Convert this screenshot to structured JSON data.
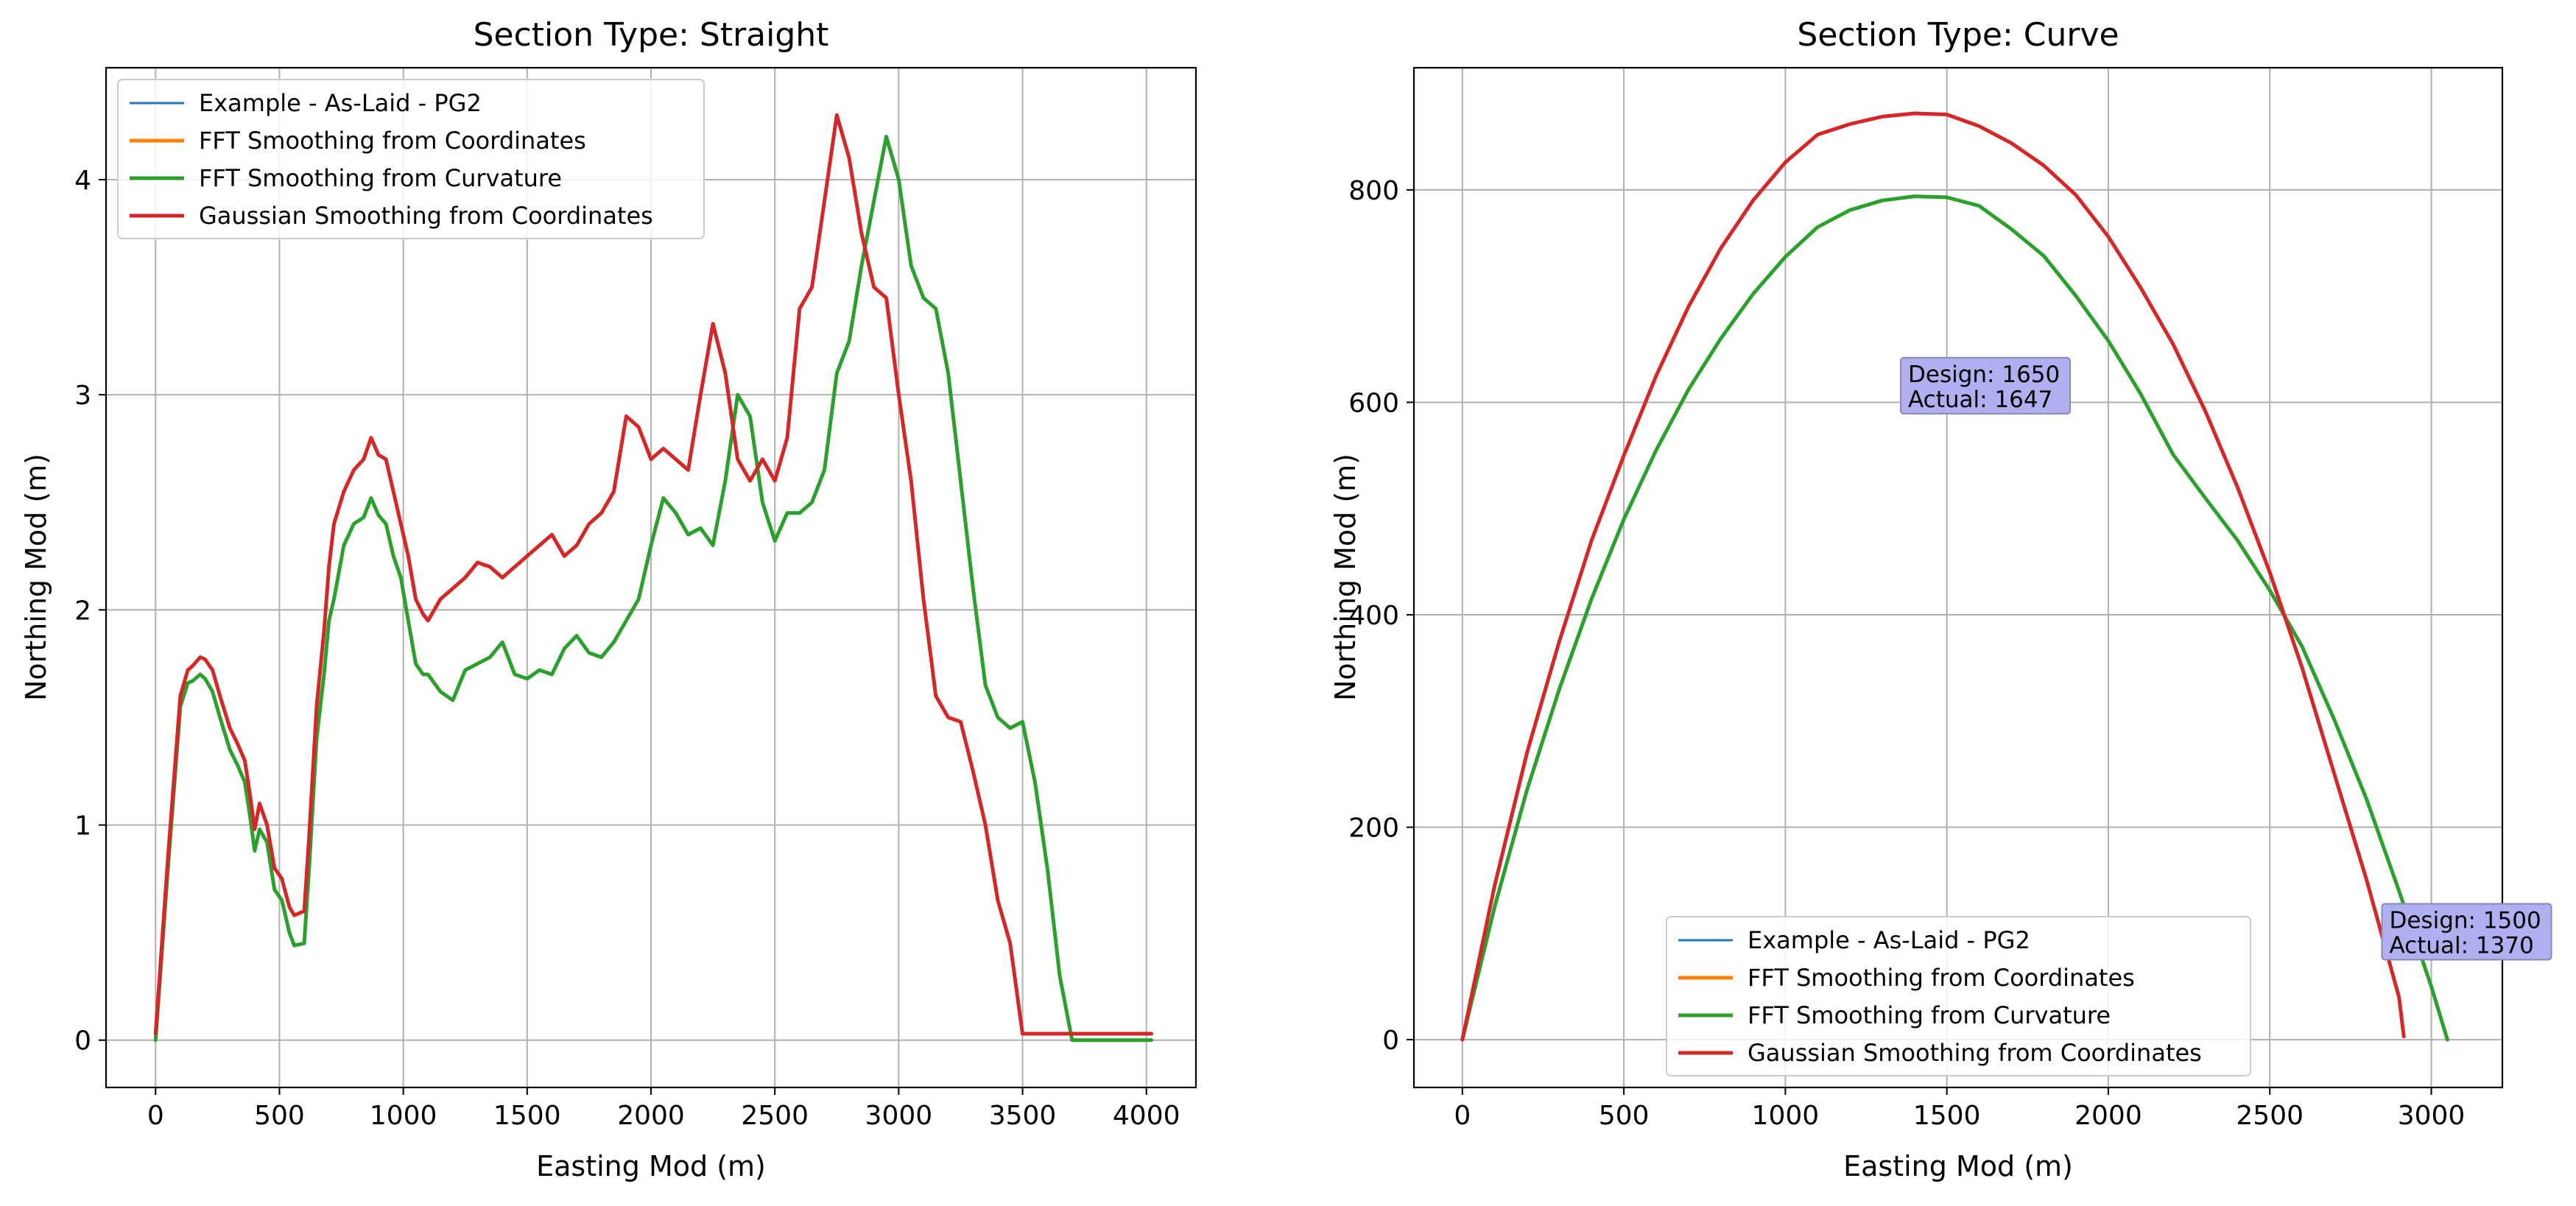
{
  "chart_data": [
    {
      "type": "line",
      "title": "Section Type: Straight",
      "xlabel": "Easting Mod (m)",
      "ylabel": "Northing Mod (m)",
      "xlim": [
        -200,
        4200
      ],
      "ylim": [
        -0.22,
        4.52
      ],
      "xticks": [
        0,
        500,
        1000,
        1500,
        2000,
        2500,
        3000,
        3500,
        4000
      ],
      "xtick_labels": [
        "0",
        "500",
        "1000",
        "1500",
        "2000",
        "2500",
        "3000",
        "3500",
        "4000"
      ],
      "yticks": [
        0,
        1,
        2,
        3,
        4
      ],
      "ytick_labels": [
        "0",
        "1",
        "2",
        "3",
        "4"
      ],
      "grid": true,
      "legend_position": "upper-left",
      "legend": [
        {
          "label": "Example - As-Laid - PG2",
          "color": "#1f77b4"
        },
        {
          "label": "FFT Smoothing from Coordinates",
          "color": "#ff7f0e"
        },
        {
          "label": "FFT Smoothing from Curvature",
          "color": "#2ca02c"
        },
        {
          "label": "Gaussian Smoothing from Coordinates",
          "color": "#d62728"
        }
      ],
      "series": [
        {
          "color": "#2ca02c",
          "x": [
            0,
            50,
            100,
            130,
            150,
            180,
            200,
            230,
            260,
            300,
            330,
            360,
            380,
            400,
            420,
            450,
            480,
            510,
            540,
            560,
            600,
            620,
            650,
            680,
            700,
            720,
            760,
            800,
            840,
            870,
            900,
            930,
            960,
            990,
            1020,
            1050,
            1080,
            1100,
            1150,
            1200,
            1250,
            1300,
            1350,
            1400,
            1450,
            1500,
            1550,
            1600,
            1650,
            1700,
            1750,
            1800,
            1850,
            1900,
            1950,
            2000,
            2050,
            2100,
            2150,
            2200,
            2250,
            2300,
            2350,
            2400,
            2450,
            2500,
            2550,
            2600,
            2650,
            2700,
            2750,
            2800,
            2850,
            2900,
            2950,
            3000,
            3050,
            3100,
            3150,
            3200,
            3250,
            3300,
            3350,
            3400,
            3450,
            3500,
            3550,
            3600,
            3650,
            3700,
            3750,
            3800,
            3850,
            3900,
            3950,
            4000,
            4020
          ],
          "y": [
            0.0,
            0.8,
            1.55,
            1.66,
            1.67,
            1.7,
            1.68,
            1.62,
            1.5,
            1.35,
            1.28,
            1.2,
            1.05,
            0.88,
            0.98,
            0.92,
            0.7,
            0.65,
            0.5,
            0.44,
            0.45,
            0.8,
            1.4,
            1.7,
            1.95,
            2.05,
            2.3,
            2.4,
            2.43,
            2.52,
            2.44,
            2.4,
            2.25,
            2.15,
            1.95,
            1.75,
            1.7,
            1.7,
            1.62,
            1.58,
            1.72,
            1.75,
            1.78,
            1.85,
            1.7,
            1.68,
            1.72,
            1.7,
            1.82,
            1.88,
            1.8,
            1.78,
            1.85,
            1.95,
            2.05,
            2.3,
            2.52,
            2.45,
            2.35,
            2.38,
            2.3,
            2.6,
            3.0,
            2.9,
            2.5,
            2.32,
            2.45,
            2.45,
            2.5,
            2.65,
            3.1,
            3.25,
            3.6,
            3.9,
            4.2,
            4.0,
            3.6,
            3.45,
            3.4,
            3.1,
            2.6,
            2.1,
            1.65,
            1.5,
            1.45,
            1.48,
            1.2,
            0.8,
            0.3,
            0.0,
            0.0,
            0.0,
            0.0,
            0.0,
            0.0,
            0.0,
            0.0
          ]
        },
        {
          "color": "#d62728",
          "x": [
            0,
            50,
            100,
            130,
            150,
            180,
            200,
            230,
            260,
            300,
            330,
            360,
            380,
            400,
            420,
            450,
            480,
            510,
            540,
            560,
            600,
            620,
            650,
            680,
            700,
            720,
            760,
            800,
            840,
            870,
            900,
            930,
            960,
            990,
            1020,
            1050,
            1080,
            1100,
            1150,
            1200,
            1250,
            1300,
            1350,
            1400,
            1450,
            1500,
            1550,
            1600,
            1650,
            1700,
            1750,
            1800,
            1850,
            1900,
            1950,
            2000,
            2050,
            2100,
            2150,
            2200,
            2250,
            2300,
            2350,
            2400,
            2450,
            2500,
            2550,
            2600,
            2650,
            2700,
            2750,
            2800,
            2850,
            2900,
            2950,
            3000,
            3050,
            3100,
            3150,
            3200,
            3250,
            3300,
            3350,
            3400,
            3450,
            3500,
            3550,
            3600,
            3650,
            3700,
            3750,
            3800,
            3850,
            3900,
            3950,
            4000,
            4020
          ],
          "y": [
            0.03,
            0.85,
            1.6,
            1.72,
            1.74,
            1.78,
            1.77,
            1.72,
            1.6,
            1.45,
            1.38,
            1.3,
            1.15,
            0.98,
            1.1,
            1.0,
            0.8,
            0.75,
            0.62,
            0.58,
            0.6,
            0.95,
            1.55,
            1.9,
            2.2,
            2.4,
            2.55,
            2.65,
            2.7,
            2.8,
            2.72,
            2.7,
            2.55,
            2.4,
            2.25,
            2.05,
            1.98,
            1.95,
            2.05,
            2.1,
            2.15,
            2.22,
            2.2,
            2.15,
            2.2,
            2.25,
            2.3,
            2.35,
            2.25,
            2.3,
            2.4,
            2.45,
            2.55,
            2.9,
            2.85,
            2.7,
            2.75,
            2.7,
            2.65,
            3.0,
            3.33,
            3.1,
            2.7,
            2.6,
            2.7,
            2.6,
            2.8,
            3.4,
            3.5,
            3.9,
            4.3,
            4.1,
            3.75,
            3.5,
            3.45,
            3.0,
            2.6,
            2.05,
            1.6,
            1.5,
            1.48,
            1.25,
            1.0,
            0.65,
            0.45,
            0.03,
            0.03,
            0.03,
            0.03,
            0.03,
            0.03,
            0.03,
            0.03,
            0.03,
            0.03,
            0.03,
            0.03
          ]
        }
      ]
    },
    {
      "type": "line",
      "title": "Section Type: Curve",
      "xlabel": "Easting Mod (m)",
      "ylabel": "Northing Mod (m)",
      "xlim": [
        -150,
        3220
      ],
      "ylim": [
        -45,
        915
      ],
      "xticks": [
        0,
        500,
        1000,
        1500,
        2000,
        2500,
        3000
      ],
      "xtick_labels": [
        "0",
        "500",
        "1000",
        "1500",
        "2000",
        "2500",
        "3000"
      ],
      "yticks": [
        0,
        200,
        400,
        600,
        800
      ],
      "ytick_labels": [
        "0",
        "200",
        "400",
        "600",
        "800"
      ],
      "grid": true,
      "legend_position": "lower-center",
      "legend": [
        {
          "label": "Example - As-Laid - PG2",
          "color": "#1f77b4"
        },
        {
          "label": "FFT Smoothing from Coordinates",
          "color": "#ff7f0e"
        },
        {
          "label": "FFT Smoothing from Curvature",
          "color": "#2ca02c"
        },
        {
          "label": "Gaussian Smoothing from Coordinates",
          "color": "#d62728"
        }
      ],
      "annotations": [
        {
          "line1": "Design: 1650",
          "line2": "Actual: 1647",
          "x": 1380,
          "y": 617
        },
        {
          "line1": "Design: 1500",
          "line2": "Actual: 1370",
          "x": 2870,
          "y": 103
        }
      ],
      "series": [
        {
          "color": "#2ca02c",
          "x": [
            0,
            100,
            200,
            300,
            400,
            500,
            600,
            700,
            800,
            900,
            1000,
            1100,
            1200,
            1300,
            1400,
            1500,
            1600,
            1700,
            1800,
            1900,
            2000,
            2100,
            2200,
            2300,
            2400,
            2500,
            2600,
            2700,
            2800,
            2900,
            3000,
            3050
          ],
          "y": [
            0,
            125,
            235,
            330,
            415,
            490,
            555,
            612,
            660,
            702,
            737,
            765,
            781,
            790,
            794,
            793,
            785,
            763,
            738,
            700,
            658,
            608,
            551,
            510,
            470,
            423,
            370,
            301,
            226,
            140,
            50,
            0
          ]
        },
        {
          "color": "#d62728",
          "x": [
            0,
            100,
            200,
            300,
            400,
            500,
            600,
            700,
            800,
            900,
            1000,
            1100,
            1200,
            1300,
            1400,
            1500,
            1600,
            1700,
            1800,
            1900,
            2000,
            2100,
            2200,
            2300,
            2400,
            2500,
            2600,
            2700,
            2800,
            2900,
            2915
          ],
          "y": [
            0,
            145,
            270,
            375,
            470,
            550,
            625,
            690,
            745,
            790,
            826,
            852,
            862,
            869,
            872,
            871,
            860,
            844,
            823,
            795,
            756,
            708,
            655,
            592,
            520,
            440,
            350,
            250,
            150,
            40,
            3
          ]
        }
      ]
    }
  ]
}
